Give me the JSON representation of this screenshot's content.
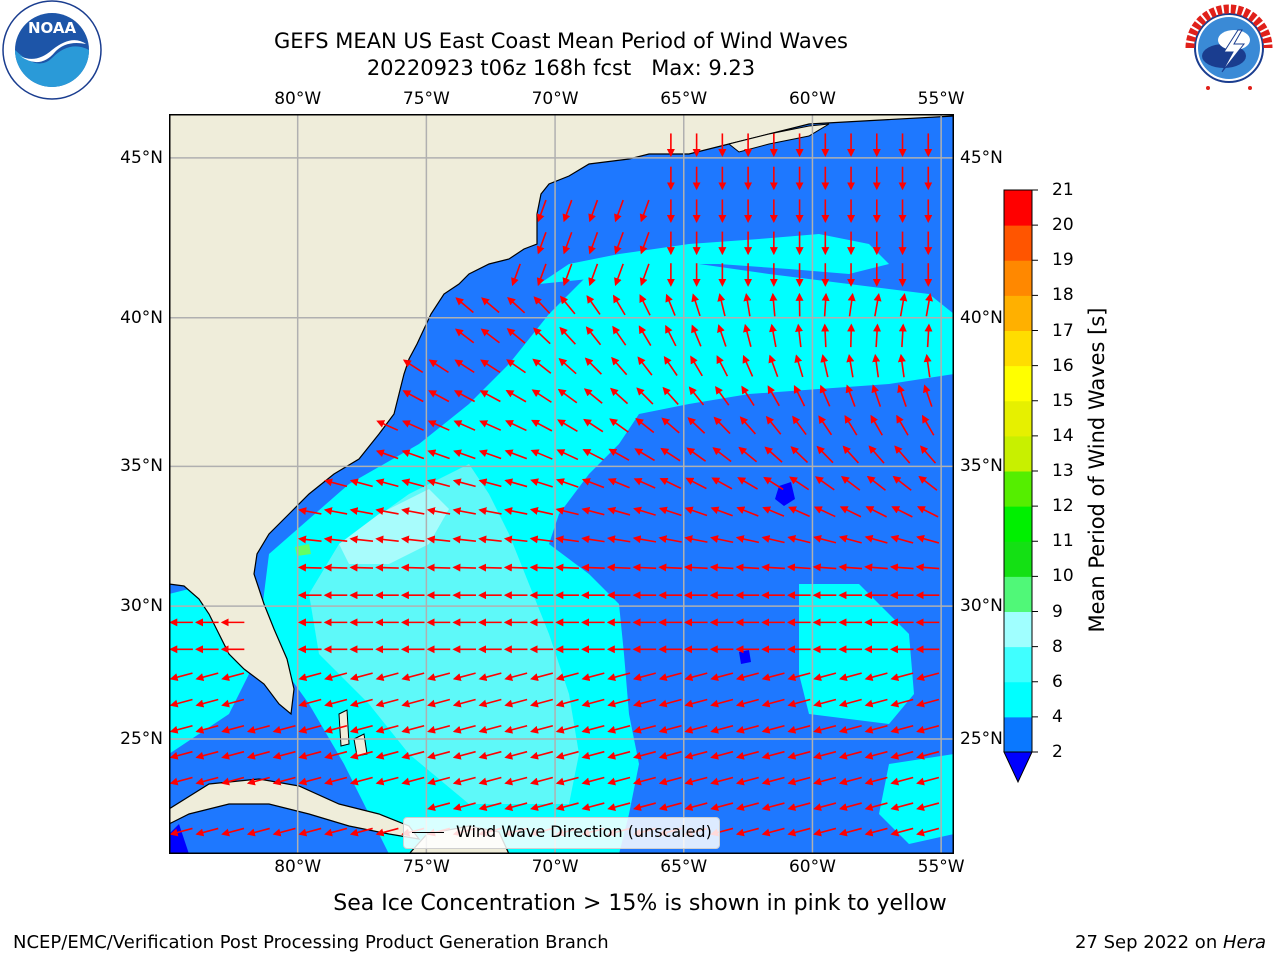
{
  "title": {
    "line1": "GEFS MEAN US East Coast Mean Period of Wind Waves",
    "line2": "20220923 t06z 168h fcst   Max: 9.23"
  },
  "logos": {
    "left": "NOAA",
    "left_ring": "NATIONAL OCEANIC AND ATMOSPHERIC ADMINISTRATION · U.S. DEPARTMENT OF COMMERCE",
    "right_ring": "NATIONAL WEATHER SERVICE"
  },
  "map": {
    "lon_labels": [
      "80°W",
      "75°W",
      "70°W",
      "65°W",
      "60°W",
      "55°W"
    ],
    "lat_labels": [
      "45°N",
      "40°N",
      "35°N",
      "30°N",
      "25°N"
    ],
    "lon_range": [
      -85,
      -54.5
    ],
    "lat_range": [
      20.5,
      46.3
    ],
    "grid": true,
    "colors": {
      "land": "#efedda",
      "lt2": "#1e78ff",
      "4to6": "#00ffff",
      "6to8": "#5ef9f9",
      "8to9": "#a8fcfc",
      "over_9": "#64ff64",
      "under_2": "#0000ff",
      "arrow": "#ff0000",
      "grid": "#b0b0b0"
    },
    "legend": "Wind Wave Direction (unscaled)"
  },
  "colorbar": {
    "label": "Mean Period of Wind Waves [s]",
    "ticks": [
      "2",
      "4",
      "6",
      "8",
      "9",
      "10",
      "11",
      "12",
      "13",
      "14",
      "15",
      "16",
      "17",
      "18",
      "19",
      "20",
      "21"
    ],
    "colors": [
      "#0a78ff",
      "#00ffff",
      "#40ffff",
      "#a0ffff",
      "#50f878",
      "#14e014",
      "#00f000",
      "#55ee00",
      "#c8f000",
      "#e6f000",
      "#ffff00",
      "#ffdd00",
      "#ffb000",
      "#ff8800",
      "#ff5500",
      "#ff2200"
    ],
    "under_color": "#0000ff",
    "top_color": "#ff0000"
  },
  "note": "Sea Ice Concentration > 15% is shown in pink to yellow",
  "footer": {
    "left": "NCEP/EMC/Verification Post Processing Product Generation Branch",
    "right_date": "27 Sep 2022 on ",
    "right_host": "Hera"
  }
}
